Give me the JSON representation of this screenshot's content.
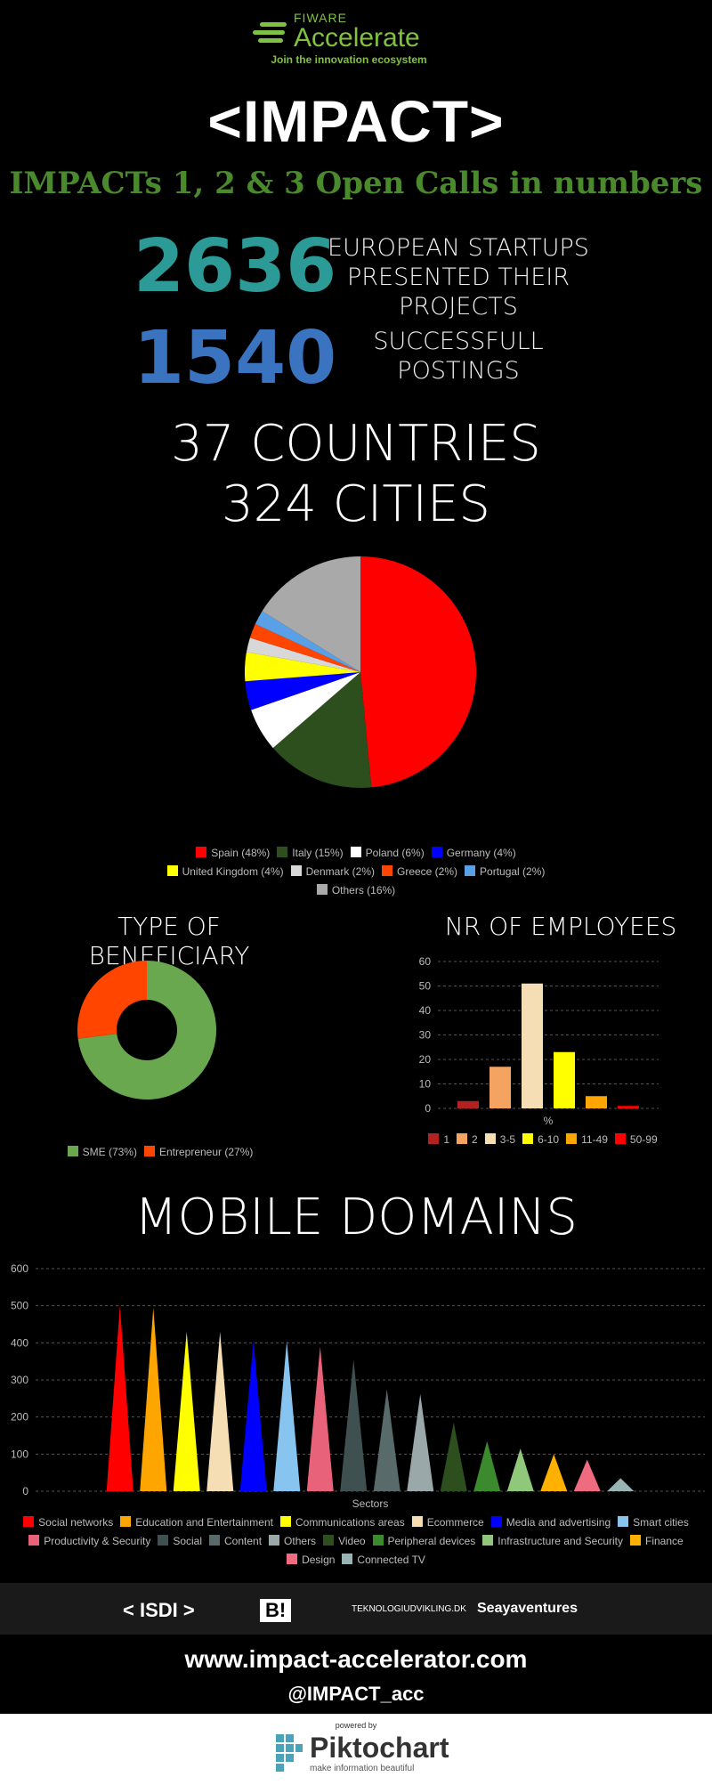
{
  "header": {
    "logo_brand": "FIWARE",
    "logo_name": "Accelerate",
    "logo_tagline": "Join the innovation ecosystem",
    "title": "<IMPACT>",
    "subtitle": "IMPACTs 1, 2 & 3 Open Calls in numbers"
  },
  "stats": [
    {
      "number": "2636",
      "label_line1": "EUROPEAN STARTUPS",
      "label_line2": "PRESENTED THEIR PROJECTS"
    },
    {
      "number": "1540",
      "label_line1": "SUCCESSFULL",
      "label_line2": "POSTINGS"
    }
  ],
  "countries": {
    "line1": "37 COUNTRIES",
    "line2": "324 CITIES"
  },
  "colors": {
    "green_brand": "#7fc241",
    "teal": "#2c9a96",
    "blue": "#3a73c0"
  },
  "chart_data": [
    {
      "type": "pie",
      "title": "",
      "categories": [
        "Spain (48%)",
        "Italy (15%)",
        "Poland (6%)",
        "Germany (4%)",
        "United Kingdom (4%)",
        "Denmark (2%)",
        "Greece (2%)",
        "Portugal (2%)",
        "Others (16%)"
      ],
      "values": [
        48,
        15,
        6,
        4,
        4,
        2,
        2,
        2,
        16
      ],
      "colors": [
        "#ff0000",
        "#2d4f1e",
        "#ffffff",
        "#0000ff",
        "#ffff00",
        "#d8d8d8",
        "#ff4500",
        "#5aa0e6",
        "#a9a9a9"
      ],
      "legend": "bottom"
    },
    {
      "type": "pie",
      "title": "TYPE OF BENEFICIARY",
      "categories": [
        "SME (73%)",
        "Entrepreneur (27%)"
      ],
      "values": [
        73,
        27
      ],
      "colors": [
        "#6aa84f",
        "#ff4500"
      ],
      "donut": true,
      "legend": "bottom"
    },
    {
      "type": "bar",
      "title": "NR OF EMPLOYEES",
      "categories": [
        "1",
        "2",
        "3-5",
        "6-10",
        "11-49",
        "50-99"
      ],
      "values": [
        3,
        17,
        51,
        23,
        5,
        1
      ],
      "colors": [
        "#b22222",
        "#f4a460",
        "#f5deb3",
        "#ffff00",
        "#ffa500",
        "#ff0000"
      ],
      "xlabel": "%",
      "ylabel": "",
      "ylim": [
        0,
        60
      ],
      "yticks": [
        "0",
        "10",
        "20",
        "30",
        "40",
        "50",
        "60"
      ],
      "grid": true,
      "legend": "bottom"
    },
    {
      "type": "bar",
      "title": "MOBILE DOMAINS",
      "categories": [
        "Social networks",
        "Education and Entertainment",
        "Communications areas",
        "Ecommerce",
        "Media and advertising",
        "Smart cities",
        "Productivity & Security",
        "Social",
        "Content",
        "Others",
        "Video",
        "Peripheral devices",
        "Infrastructure and Security",
        "Finance",
        "Design",
        "Connected TV"
      ],
      "values": [
        500,
        495,
        430,
        430,
        405,
        405,
        390,
        355,
        275,
        262,
        185,
        135,
        115,
        100,
        85,
        35
      ],
      "colors": [
        "#ff0000",
        "#ffa500",
        "#ffff00",
        "#f5deb3",
        "#0000ff",
        "#87c4f0",
        "#e8637a",
        "#3f5050",
        "#596a6a",
        "#9ba8aa",
        "#2d4f1e",
        "#3c8a2e",
        "#8fc87a",
        "#ffb000",
        "#ef6b80",
        "#99b4b4"
      ],
      "xlabel": "Sectors",
      "ylabel": "",
      "ylim": [
        0,
        600
      ],
      "yticks": [
        "0",
        "100",
        "200",
        "300",
        "400",
        "500",
        "600"
      ],
      "grid": true,
      "legend": "bottom"
    }
  ],
  "sponsors": [
    "< ISDI >",
    "B!",
    "TEKNOLOGIUDVIKLING.DK",
    "Seayaventures"
  ],
  "footer": {
    "website": "www.impact-accelerator.com",
    "handle": "@IMPACT_acc",
    "powered_by": "powered by",
    "piktochart": "Piktochart",
    "piktochart_tagline": "make information beautiful"
  }
}
